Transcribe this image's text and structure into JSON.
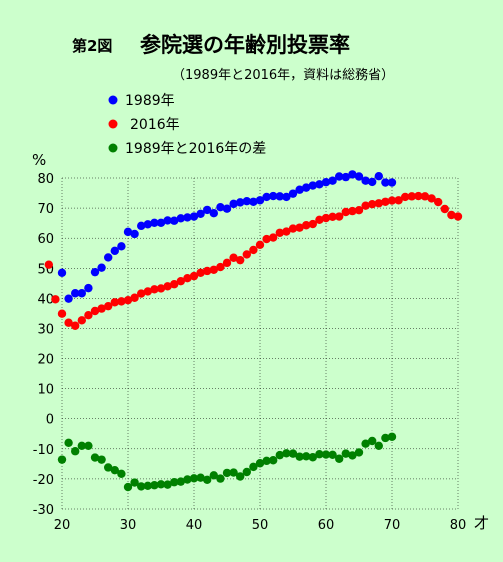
{
  "chart_data": {
    "type": "scatter",
    "figure_label": "第2図",
    "title": "参院選の年齢別投票率",
    "subtitle": "（1989年と2016年，資料は総務省）",
    "ylabel": "%",
    "xlabel": "才",
    "xlim": [
      20,
      80
    ],
    "ylim": [
      -30,
      80
    ],
    "x_ticks": [
      20,
      30,
      40,
      50,
      60,
      70,
      80
    ],
    "y_ticks": [
      80,
      70,
      60,
      50,
      40,
      30,
      20,
      10,
      0,
      -10,
      -20,
      -30
    ],
    "grid": true,
    "legend_position": "top-left",
    "series": [
      {
        "name": "1989年",
        "color": "#0000ff",
        "points": [
          [
            20,
            48.5
          ],
          [
            21,
            39.9
          ],
          [
            22,
            41.7
          ],
          [
            23,
            41.7
          ],
          [
            24,
            43.4
          ],
          [
            25,
            48.7
          ],
          [
            26,
            50.2
          ],
          [
            27,
            53.6
          ],
          [
            28,
            55.8
          ],
          [
            29,
            57.3
          ],
          [
            30,
            62.1
          ],
          [
            31,
            61.4
          ],
          [
            32,
            64.1
          ],
          [
            33,
            64.6
          ],
          [
            34,
            65.1
          ],
          [
            35,
            65.1
          ],
          [
            36,
            65.9
          ],
          [
            37,
            65.8
          ],
          [
            38,
            66.6
          ],
          [
            39,
            66.9
          ],
          [
            40,
            67.2
          ],
          [
            41,
            68.1
          ],
          [
            42,
            69.4
          ],
          [
            43,
            68.3
          ],
          [
            44,
            70.3
          ],
          [
            45,
            69.8
          ],
          [
            46,
            71.4
          ],
          [
            47,
            71.9
          ],
          [
            48,
            72.3
          ],
          [
            49,
            72.1
          ],
          [
            50,
            72.6
          ],
          [
            51,
            73.7
          ],
          [
            52,
            74.0
          ],
          [
            53,
            73.9
          ],
          [
            54,
            73.7
          ],
          [
            55,
            74.8
          ],
          [
            56,
            76.1
          ],
          [
            57,
            76.8
          ],
          [
            58,
            77.5
          ],
          [
            59,
            77.9
          ],
          [
            60,
            78.6
          ],
          [
            61,
            79.1
          ],
          [
            62,
            80.5
          ],
          [
            63,
            80.3
          ],
          [
            64,
            81.2
          ],
          [
            65,
            80.5
          ],
          [
            66,
            79.1
          ],
          [
            67,
            78.7
          ],
          [
            68,
            80.6
          ],
          [
            69,
            78.5
          ],
          [
            70,
            78.5
          ]
        ]
      },
      {
        "name": "2016年",
        "color": "#ff0000",
        "points": [
          [
            18,
            51.2
          ],
          [
            19,
            39.7
          ],
          [
            20,
            34.9
          ],
          [
            21,
            31.9
          ],
          [
            22,
            30.9
          ],
          [
            23,
            32.7
          ],
          [
            24,
            34.4
          ],
          [
            25,
            35.8
          ],
          [
            26,
            36.6
          ],
          [
            27,
            37.4
          ],
          [
            28,
            38.7
          ],
          [
            29,
            39.0
          ],
          [
            30,
            39.4
          ],
          [
            31,
            40.2
          ],
          [
            32,
            41.6
          ],
          [
            33,
            42.3
          ],
          [
            34,
            43.0
          ],
          [
            35,
            43.3
          ],
          [
            36,
            44.0
          ],
          [
            37,
            44.7
          ],
          [
            38,
            45.7
          ],
          [
            39,
            46.7
          ],
          [
            40,
            47.4
          ],
          [
            41,
            48.5
          ],
          [
            42,
            49.1
          ],
          [
            43,
            49.5
          ],
          [
            44,
            50.4
          ],
          [
            45,
            51.8
          ],
          [
            46,
            53.5
          ],
          [
            47,
            52.7
          ],
          [
            48,
            54.6
          ],
          [
            49,
            56.1
          ],
          [
            50,
            57.8
          ],
          [
            51,
            59.7
          ],
          [
            52,
            60.2
          ],
          [
            53,
            61.8
          ],
          [
            54,
            62.2
          ],
          [
            55,
            63.2
          ],
          [
            56,
            63.5
          ],
          [
            57,
            64.3
          ],
          [
            58,
            64.7
          ],
          [
            59,
            66.1
          ],
          [
            60,
            66.7
          ],
          [
            61,
            67.1
          ],
          [
            62,
            67.2
          ],
          [
            63,
            68.7
          ],
          [
            64,
            69.0
          ],
          [
            65,
            69.3
          ],
          [
            66,
            70.8
          ],
          [
            67,
            71.3
          ],
          [
            68,
            71.6
          ],
          [
            69,
            72.1
          ],
          [
            70,
            72.5
          ],
          [
            71,
            72.6
          ],
          [
            72,
            73.7
          ],
          [
            73,
            73.9
          ],
          [
            74,
            74.0
          ],
          [
            75,
            73.9
          ],
          [
            76,
            73.2
          ],
          [
            77,
            72.0
          ],
          [
            78,
            69.7
          ],
          [
            79,
            67.7
          ],
          [
            80,
            67.2
          ]
        ]
      },
      {
        "name": "1989年と2016年の差",
        "color": "#008000",
        "points": [
          [
            20,
            -13.6
          ],
          [
            21,
            -8.0
          ],
          [
            22,
            -10.8
          ],
          [
            23,
            -9.0
          ],
          [
            24,
            -9.0
          ],
          [
            25,
            -12.9
          ],
          [
            26,
            -13.6
          ],
          [
            27,
            -16.2
          ],
          [
            28,
            -17.1
          ],
          [
            29,
            -18.3
          ],
          [
            30,
            -22.7
          ],
          [
            31,
            -21.2
          ],
          [
            32,
            -22.5
          ],
          [
            33,
            -22.3
          ],
          [
            34,
            -22.1
          ],
          [
            35,
            -21.8
          ],
          [
            36,
            -21.9
          ],
          [
            37,
            -21.1
          ],
          [
            38,
            -20.9
          ],
          [
            39,
            -20.2
          ],
          [
            40,
            -19.8
          ],
          [
            41,
            -19.6
          ],
          [
            42,
            -20.3
          ],
          [
            43,
            -18.8
          ],
          [
            44,
            -19.9
          ],
          [
            45,
            -18.0
          ],
          [
            46,
            -17.9
          ],
          [
            47,
            -19.2
          ],
          [
            48,
            -17.7
          ],
          [
            49,
            -16.0
          ],
          [
            50,
            -14.8
          ],
          [
            51,
            -14.0
          ],
          [
            52,
            -13.8
          ],
          [
            53,
            -12.1
          ],
          [
            54,
            -11.5
          ],
          [
            55,
            -11.6
          ],
          [
            56,
            -12.6
          ],
          [
            57,
            -12.5
          ],
          [
            58,
            -12.8
          ],
          [
            59,
            -11.8
          ],
          [
            60,
            -11.9
          ],
          [
            61,
            -12.0
          ],
          [
            62,
            -13.3
          ],
          [
            63,
            -11.6
          ],
          [
            64,
            -12.2
          ],
          [
            65,
            -11.2
          ],
          [
            66,
            -8.3
          ],
          [
            67,
            -7.4
          ],
          [
            68,
            -9.0
          ],
          [
            69,
            -6.4
          ],
          [
            70,
            -6.0
          ]
        ]
      }
    ]
  }
}
